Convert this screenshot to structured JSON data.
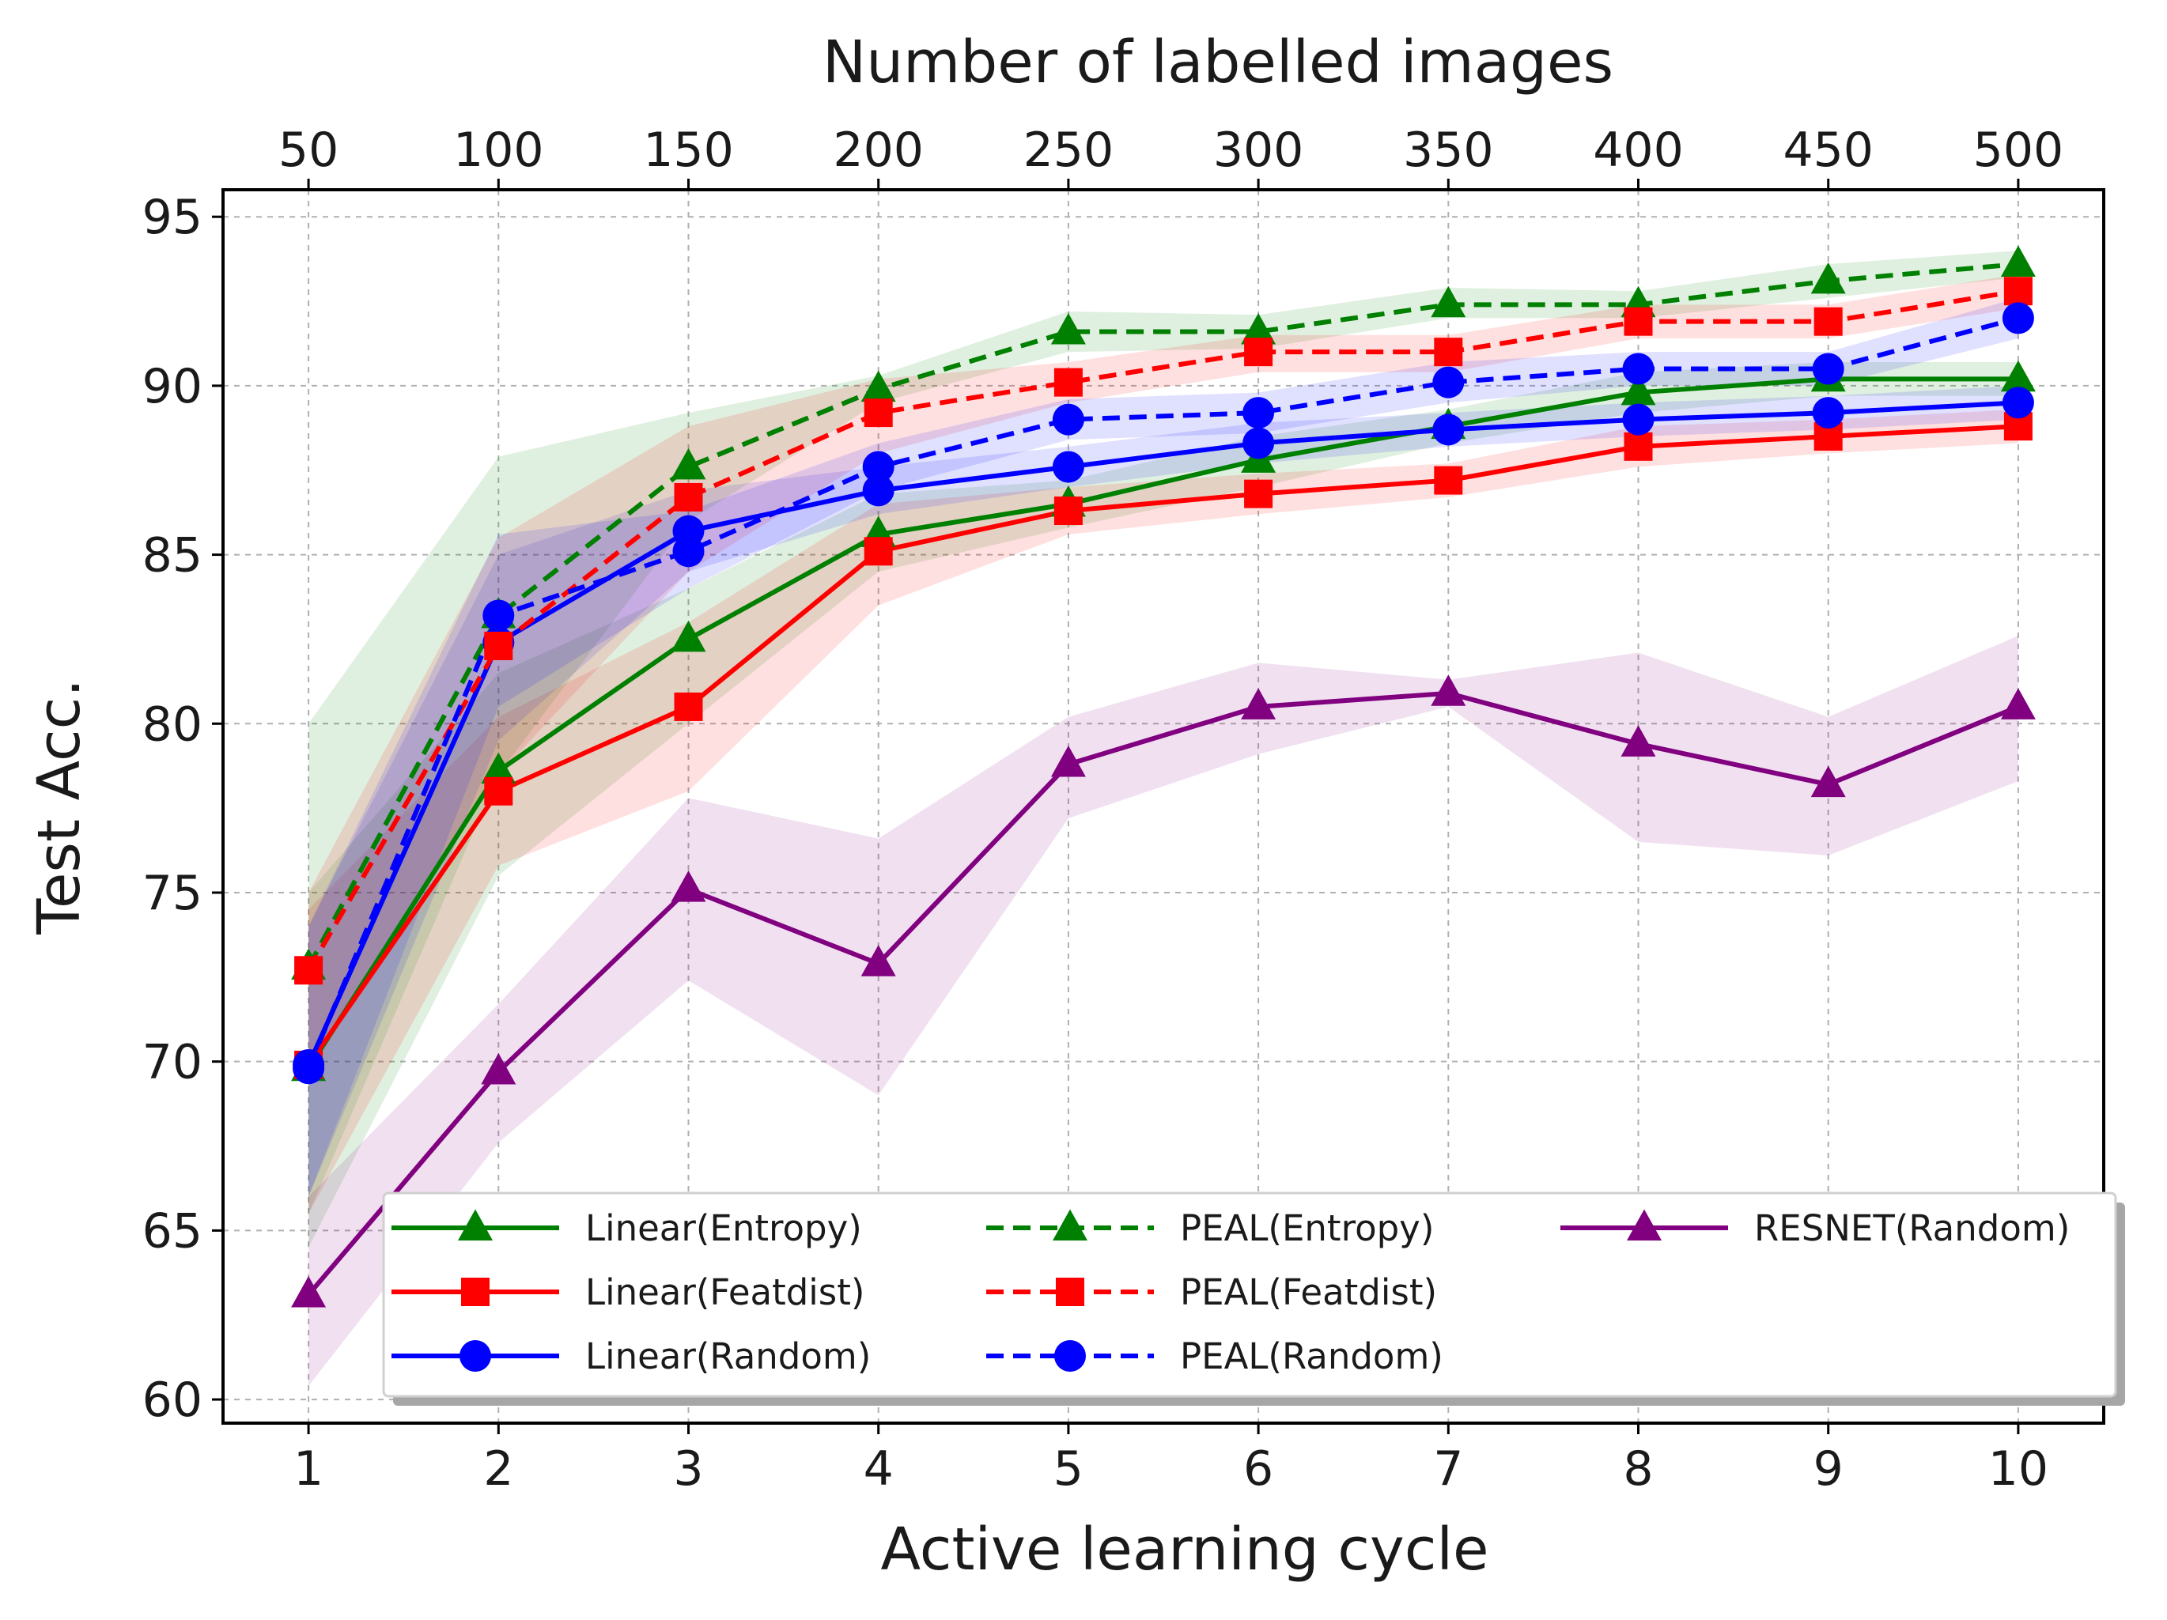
{
  "chart_data": {
    "type": "line",
    "xlabel": "Active learning cycle",
    "ylabel": "Test Acc.",
    "top_xlabel": "Number of labelled images",
    "x": [
      1,
      2,
      3,
      4,
      5,
      6,
      7,
      8,
      9,
      10
    ],
    "x_tick_labels": [
      "1",
      "2",
      "3",
      "4",
      "5",
      "6",
      "7",
      "8",
      "9",
      "10"
    ],
    "top_tick_labels": [
      "50",
      "100",
      "150",
      "200",
      "250",
      "300",
      "350",
      "400",
      "450",
      "500"
    ],
    "y_ticks": [
      60,
      65,
      70,
      75,
      80,
      85,
      90,
      95
    ],
    "y_tick_labels": [
      "60",
      "65",
      "70",
      "75",
      "80",
      "85",
      "90",
      "95"
    ],
    "xlim": [
      0.55,
      10.45
    ],
    "ylim": [
      59.3,
      95.8
    ],
    "grid": true,
    "legend_placement": "lower-right",
    "series": [
      {
        "name": "Linear(Entropy)",
        "color": "#008000",
        "linestyle": "solid",
        "marker": "triangle",
        "values": [
          69.8,
          78.6,
          82.5,
          85.6,
          86.5,
          87.8,
          88.8,
          89.8,
          90.2,
          90.2
        ],
        "lower": [
          64.5,
          75.5,
          80.0,
          84.5,
          85.8,
          87.0,
          88.3,
          89.2,
          89.7,
          89.7
        ],
        "upper": [
          75.0,
          81.5,
          84.0,
          86.8,
          87.2,
          88.5,
          89.3,
          90.4,
          90.7,
          90.7
        ]
      },
      {
        "name": "Linear(Featdist)",
        "color": "#ff0000",
        "linestyle": "solid",
        "marker": "square",
        "values": [
          69.9,
          78.0,
          80.5,
          85.1,
          86.3,
          86.8,
          87.2,
          88.2,
          88.5,
          88.8
        ],
        "lower": [
          65.5,
          75.8,
          78.0,
          83.5,
          85.6,
          86.2,
          86.7,
          87.6,
          88.0,
          88.3
        ],
        "upper": [
          74.5,
          80.2,
          83.0,
          86.5,
          87.0,
          87.4,
          87.7,
          88.8,
          89.0,
          89.3
        ]
      },
      {
        "name": "Linear(Random)",
        "color": "#0000ff",
        "linestyle": "solid",
        "marker": "circle",
        "values": [
          69.9,
          82.4,
          85.7,
          86.9,
          87.6,
          88.3,
          88.7,
          89.0,
          89.2,
          89.5
        ],
        "lower": [
          66.0,
          79.5,
          84.5,
          86.2,
          87.0,
          87.7,
          88.2,
          88.5,
          88.7,
          89.0
        ],
        "upper": [
          74.0,
          85.0,
          86.9,
          87.6,
          88.2,
          88.9,
          89.2,
          89.5,
          89.7,
          90.0
        ]
      },
      {
        "name": "PEAL(Entropy)",
        "color": "#008000",
        "linestyle": "dashed",
        "marker": "triangle",
        "values": [
          72.8,
          83.2,
          87.6,
          89.9,
          91.6,
          91.6,
          92.4,
          92.4,
          93.1,
          93.6
        ],
        "lower": [
          65.5,
          78.5,
          86.0,
          89.5,
          91.0,
          91.1,
          92.0,
          92.0,
          92.6,
          93.2
        ],
        "upper": [
          80.0,
          87.9,
          89.2,
          90.3,
          92.2,
          92.1,
          92.9,
          92.8,
          93.6,
          94.0
        ]
      },
      {
        "name": "PEAL(Featdist)",
        "color": "#ff0000",
        "linestyle": "dashed",
        "marker": "square",
        "values": [
          72.7,
          82.3,
          86.7,
          89.2,
          90.1,
          91.0,
          91.0,
          91.9,
          91.9,
          92.8
        ],
        "lower": [
          70.0,
          78.5,
          84.5,
          88.0,
          89.5,
          90.4,
          90.4,
          91.4,
          91.4,
          92.3
        ],
        "upper": [
          75.0,
          85.5,
          88.8,
          90.2,
          90.7,
          91.5,
          91.5,
          92.4,
          92.4,
          93.3
        ]
      },
      {
        "name": "PEAL(Random)",
        "color": "#0000ff",
        "linestyle": "dashed",
        "marker": "circle",
        "values": [
          69.8,
          83.2,
          85.1,
          87.6,
          89.0,
          89.2,
          90.1,
          90.5,
          90.5,
          92.0
        ],
        "lower": [
          66.0,
          80.5,
          84.0,
          86.9,
          88.4,
          88.6,
          89.5,
          90.0,
          90.0,
          91.4
        ],
        "upper": [
          74.0,
          85.6,
          86.3,
          88.3,
          89.6,
          89.8,
          90.7,
          91.0,
          91.0,
          92.6
        ]
      },
      {
        "name": "RESNET(Random)",
        "color": "#800080",
        "linestyle": "solid",
        "marker": "triangle",
        "values": [
          63.1,
          69.7,
          75.1,
          72.9,
          78.8,
          80.5,
          80.9,
          79.4,
          78.2,
          80.5
        ],
        "lower": [
          60.4,
          67.6,
          72.4,
          69.0,
          77.2,
          79.1,
          80.5,
          76.5,
          76.1,
          78.3
        ],
        "upper": [
          66.0,
          71.7,
          77.8,
          76.6,
          80.2,
          81.8,
          81.3,
          82.1,
          80.2,
          82.6
        ]
      }
    ]
  }
}
